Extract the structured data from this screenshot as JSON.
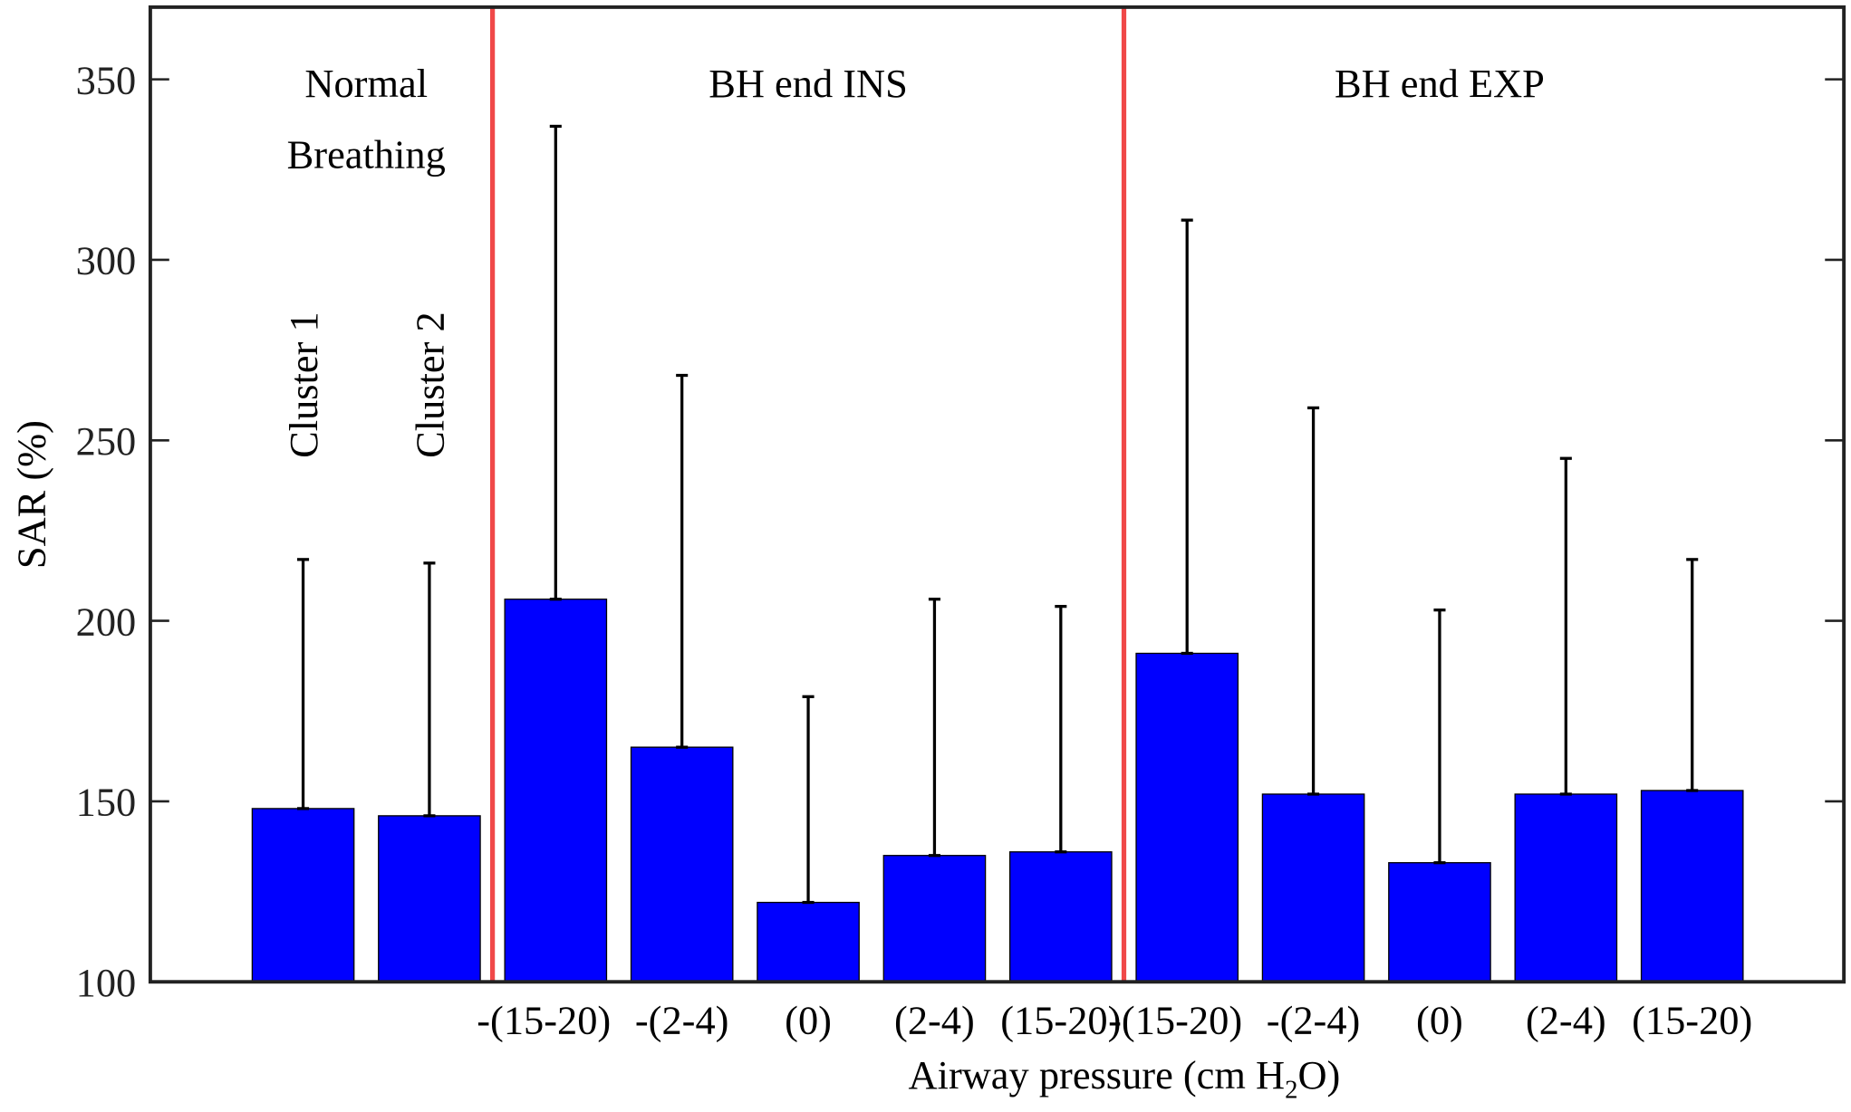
{
  "chart_data": {
    "type": "bar",
    "xlabel": "Airway pressure (cm H2O)",
    "xlabel_parts": {
      "main": "Airway pressure (cm H",
      "sub": "2",
      "end": "O)"
    },
    "ylabel": "SAR (%)",
    "ylim": [
      100,
      370
    ],
    "yticks": [
      100,
      150,
      200,
      250,
      300,
      350
    ],
    "grid": false,
    "bar_color": "#0000ff",
    "divider_color": "#f04848",
    "dividers_after_category_index": [
      1,
      6
    ],
    "groups": [
      {
        "label_lines": [
          "Normal",
          "Breathing"
        ]
      },
      {
        "label_lines": [
          "BH end INS"
        ]
      },
      {
        "label_lines": [
          "BH end EXP"
        ]
      }
    ],
    "categories": [
      "Cluster 1",
      "Cluster 2",
      "-(15-20)",
      "-(2-4)",
      "(0)",
      "(2-4)",
      "(15-20)",
      "-(15-20)",
      "-(2-4)",
      "(0)",
      "(2-4)",
      "(15-20)"
    ],
    "rotated_category_labels": [
      0,
      1
    ],
    "values": [
      148,
      146,
      206,
      165,
      122,
      135,
      136,
      191,
      152,
      133,
      152,
      153
    ],
    "error_upper": [
      217,
      216,
      337,
      268,
      179,
      206,
      204,
      311,
      259,
      203,
      245,
      217
    ]
  }
}
